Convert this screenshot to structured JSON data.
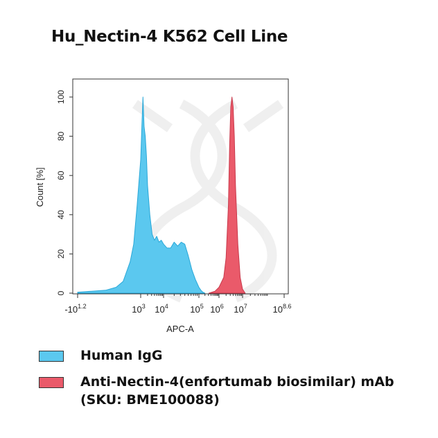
{
  "chart_data": {
    "type": "area",
    "title": "Hu_Nectin-4 K562 Cell Line",
    "xlabel": "APC-A",
    "ylabel": "Count [%]",
    "x_scale": "biexponential",
    "xlim": [
      -101.2,
      108.6
    ],
    "ylim": [
      0,
      100
    ],
    "x_ticks": [
      {
        "label": "-10",
        "sup": "1.2"
      },
      {
        "label": "10",
        "sup": "3"
      },
      {
        "label": "10",
        "sup": "4"
      },
      {
        "label": "10",
        "sup": "5"
      },
      {
        "label": "10",
        "sup": "6"
      },
      {
        "label": "10",
        "sup": "7"
      },
      {
        "label": "10",
        "sup": "8.6"
      }
    ],
    "y_ticks": [
      "0",
      "20",
      "40",
      "60",
      "80",
      "100"
    ],
    "grid": false,
    "legend_position": "bottom",
    "series": [
      {
        "name": "Human IgG",
        "color": "#5bc8ef",
        "x_log10": [
          1.2,
          1.6,
          2.0,
          2.3,
          2.5,
          2.7,
          2.8,
          2.9,
          3.0,
          3.05,
          3.1,
          3.15,
          3.2,
          3.25,
          3.3,
          3.4,
          3.5,
          3.6,
          3.7,
          3.8,
          3.9,
          4.0,
          4.1,
          4.2,
          4.3,
          4.4,
          4.5,
          4.6,
          4.7,
          4.8,
          4.9,
          5.0,
          5.1,
          5.2,
          5.3
        ],
        "y": [
          0.5,
          1,
          1.5,
          3,
          6,
          16,
          25,
          45,
          68,
          85,
          100,
          85,
          80,
          70,
          55,
          40,
          30,
          27,
          29,
          26,
          27,
          25,
          23,
          23,
          26,
          24,
          26,
          25,
          19,
          12,
          7,
          3,
          1.5,
          0.5,
          0
        ]
      },
      {
        "name": "Anti-Nectin-4(enfortumab biosimilar) mAb (SKU: BME100088)",
        "color": "#ea5a6a",
        "x_log10": [
          5.5,
          5.8,
          6.0,
          6.2,
          6.3,
          6.4,
          6.45,
          6.5,
          6.55,
          6.6,
          6.65,
          6.7,
          6.8,
          6.9,
          7.0,
          7.1
        ],
        "y": [
          0,
          1,
          3,
          8,
          18,
          45,
          75,
          95,
          100,
          95,
          80,
          55,
          25,
          8,
          2,
          0
        ]
      }
    ]
  },
  "colors": {
    "igg": "#5bc8ef",
    "nectin": "#ea5a6a",
    "axis": "#333333"
  }
}
